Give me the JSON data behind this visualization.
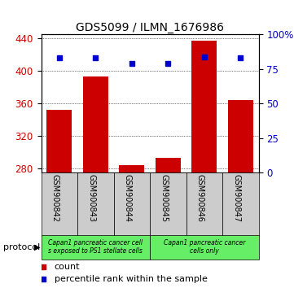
{
  "title": "GDS5099 / ILMN_1676986",
  "categories": [
    "GSM900842",
    "GSM900843",
    "GSM900844",
    "GSM900845",
    "GSM900846",
    "GSM900847"
  ],
  "counts": [
    352,
    393,
    284,
    293,
    437,
    364
  ],
  "percentiles": [
    83,
    83,
    79,
    79,
    84,
    83
  ],
  "ylim_left": [
    275,
    445
  ],
  "ylim_right": [
    0,
    100
  ],
  "yticks_left": [
    280,
    320,
    360,
    400,
    440
  ],
  "yticks_right": [
    0,
    25,
    50,
    75,
    100
  ],
  "ytick_labels_right": [
    "0",
    "25",
    "50",
    "75",
    "100%"
  ],
  "bar_color": "#cc0000",
  "dot_color": "#0000cc",
  "bar_bottom": 275,
  "group_labels": [
    "Capan1 pancreatic cancer cell\ns exposed to PS1 stellate cells",
    "Capan1 pancreatic cancer\ncells only"
  ],
  "group_ranges": [
    [
      0,
      3
    ],
    [
      3,
      6
    ]
  ],
  "group_color": "#66ee66",
  "sample_box_color": "#cccccc",
  "legend_labels": [
    "count",
    "percentile rank within the sample"
  ],
  "legend_colors": [
    "#cc0000",
    "#0000cc"
  ],
  "background_color": "#ffffff"
}
